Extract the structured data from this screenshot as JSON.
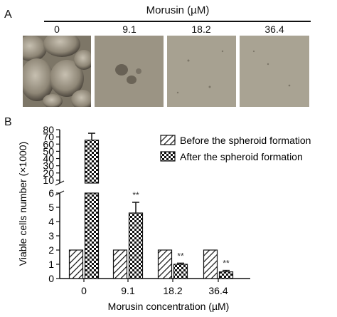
{
  "panel_a": {
    "letter": "A",
    "header": "Morusin (µM)",
    "concentrations": [
      "0",
      "9.1",
      "18.2",
      "36.4"
    ],
    "image_colors": {
      "bg_dark": "#8a8376",
      "bg_light": "#a8a294"
    }
  },
  "panel_b": {
    "letter": "B"
  },
  "chart_data": {
    "type": "bar",
    "categories": [
      "0",
      "9.1",
      "18.2",
      "36.4"
    ],
    "series": [
      {
        "name": "Before the spheroid formation",
        "pattern": "diagonal-hatch",
        "values": [
          2,
          2,
          2,
          2
        ]
      },
      {
        "name": "After the spheroid formation",
        "pattern": "checkerboard",
        "values": [
          65.5,
          4.6,
          1.0,
          0.47
        ],
        "errors": [
          9.5,
          0.75,
          0.08,
          0.1
        ],
        "annotations": [
          "",
          "**",
          "**",
          "**"
        ]
      }
    ],
    "xlabel": "Morusin concentration (µM)",
    "ylabel": "Viable cells number (×1000)",
    "y_axis_break": {
      "lower_range": [
        0,
        6
      ],
      "upper_range": [
        6,
        80
      ]
    },
    "lower_ticks": [
      0,
      1,
      2,
      3,
      4,
      5,
      6
    ],
    "upper_ticks": [
      10,
      20,
      30,
      40,
      50,
      60,
      70,
      80
    ],
    "legend_position": "top-right",
    "grid": false
  }
}
